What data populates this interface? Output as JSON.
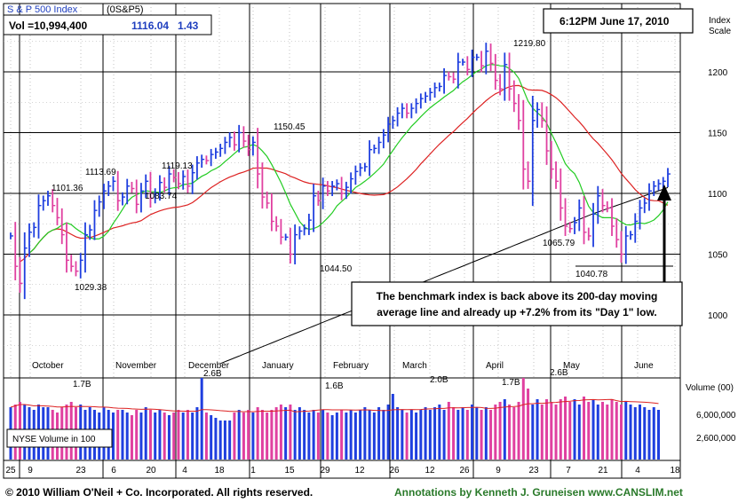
{
  "header": {
    "index_name": "S & P 500 Index",
    "symbol": "(0S&P5)",
    "volume_text": "Vol =10,994,400",
    "last_price": "1116.04",
    "change": "1.43",
    "timestamp": "6:12PM  June 17, 2010",
    "index_scale_label_1": "Index",
    "index_scale_label_2": "Scale"
  },
  "annotation": {
    "line1": "The benchmark index is back above its 200-day moving",
    "line2": "average line and already up +7.2% from its \"Day 1\" low."
  },
  "volume_panel": {
    "label": "NYSE Volume in 100",
    "axis_title": "Volume (00)",
    "axis_ticks": [
      "6,000,000",
      "2,600,000"
    ],
    "peak_labels": [
      "1.7B",
      "2.6B",
      "1.6B",
      "2.0B",
      "1.7B",
      "2.6B"
    ]
  },
  "footer": {
    "copyright": "© 2010 William O'Neil + Co. Incorporated. All rights reserved.",
    "credit": "Annotations by Kenneth J. Gruneisen www.CANSLIM.net"
  },
  "colors": {
    "up_bar": "#1f3fdf",
    "down_bar": "#e040a0",
    "ma50": "#22cc22",
    "ma200": "#000000",
    "ma_red": "#dd2222",
    "grid": "#888888"
  },
  "chart_data": {
    "type": "bar",
    "title": "S & P 500 Index",
    "ylabel": "Index Scale",
    "ylim": [
      965,
      1230
    ],
    "y_ticks": [
      1000,
      1050,
      1100,
      1150,
      1200
    ],
    "x_tick_labels": [
      "25",
      "9",
      "23",
      "6",
      "20",
      "4",
      "18",
      "1",
      "15",
      "29",
      "12",
      "26",
      "12",
      "26",
      "9",
      "23",
      "7",
      "21",
      "4",
      "18"
    ],
    "month_labels": [
      "October",
      "November",
      "December",
      "January",
      "February",
      "March",
      "April",
      "May",
      "June"
    ],
    "annotated_levels": [
      {
        "label": "1101.36",
        "value": 1101.36
      },
      {
        "label": "1029.38",
        "value": 1029.38
      },
      {
        "label": "1113.69",
        "value": 1113.69
      },
      {
        "label": "1083.74",
        "value": 1083.74
      },
      {
        "label": "1119.13",
        "value": 1119.13
      },
      {
        "label": "1150.45",
        "value": 1150.45
      },
      {
        "label": "1044.50",
        "value": 1044.5
      },
      {
        "label": "1219.80",
        "value": 1219.8
      },
      {
        "label": "1065.79",
        "value": 1065.79
      },
      {
        "label": "1040.78",
        "value": 1040.78
      }
    ],
    "series": [
      {
        "name": "price_close",
        "values": [
          1065,
          1040,
          1026,
          1055,
          1068,
          1072,
          1090,
          1094,
          1098,
          1090,
          1080,
          1066,
          1045,
          1040,
          1036,
          1045,
          1066,
          1070,
          1086,
          1093,
          1102,
          1106,
          1110,
          1094,
          1097,
          1106,
          1104,
          1091,
          1102,
          1110,
          1096,
          1100,
          1109,
          1105,
          1116,
          1113,
          1108,
          1114,
          1106,
          1117,
          1125,
          1128,
          1127,
          1132,
          1134,
          1137,
          1142,
          1146,
          1140,
          1150,
          1143,
          1136,
          1142,
          1116,
          1097,
          1092,
          1077,
          1073,
          1064,
          1064,
          1050,
          1066,
          1069,
          1071,
          1078,
          1098,
          1094,
          1106,
          1102,
          1106,
          1108,
          1100,
          1105,
          1112,
          1118,
          1121,
          1122,
          1136,
          1137,
          1142,
          1148,
          1157,
          1160,
          1166,
          1170,
          1166,
          1170,
          1174,
          1178,
          1180,
          1183,
          1187,
          1188,
          1197,
          1196,
          1194,
          1208,
          1208,
          1202,
          1212,
          1212,
          1205,
          1217,
          1207,
          1193,
          1186,
          1206,
          1186,
          1174,
          1160,
          1120,
          1110,
          1160,
          1169,
          1160,
          1135,
          1120,
          1110,
          1088,
          1073,
          1071,
          1076,
          1088,
          1068,
          1065,
          1083,
          1098,
          1090,
          1088,
          1073,
          1062,
          1050,
          1065,
          1066,
          1077,
          1088,
          1092,
          1102,
          1106,
          1108,
          1110,
          1116
        ]
      },
      {
        "name": "volume",
        "values": [
          1.5,
          1.6,
          1.7,
          1.6,
          1.5,
          1.4,
          1.6,
          1.5,
          1.5,
          1.4,
          1.3,
          1.5,
          1.6,
          1.7,
          1.5,
          1.6,
          1.4,
          1.5,
          1.4,
          1.3,
          1.5,
          1.4,
          1.3,
          1.4,
          1.4,
          1.3,
          1.2,
          1.4,
          1.3,
          1.5,
          1.4,
          1.3,
          1.4,
          1.3,
          1.2,
          1.3,
          1.4,
          1.3,
          1.4,
          1.3,
          1.5,
          2.6,
          1.3,
          1.2,
          1.1,
          1.0,
          1.0,
          1.0,
          1.3,
          1.4,
          1.3,
          1.4,
          1.3,
          1.5,
          1.4,
          1.3,
          1.4,
          1.5,
          1.6,
          1.5,
          1.6,
          1.4,
          1.5,
          1.4,
          1.3,
          1.4,
          1.3,
          1.4,
          1.3,
          1.2,
          1.3,
          1.4,
          1.3,
          1.4,
          1.3,
          1.4,
          1.5,
          1.4,
          1.3,
          1.5,
          1.4,
          1.6,
          2.0,
          1.5,
          1.4,
          1.3,
          1.4,
          1.3,
          1.4,
          1.5,
          1.4,
          1.5,
          1.6,
          1.4,
          1.7,
          1.5,
          1.4,
          1.5,
          1.4,
          1.6,
          1.5,
          1.4,
          1.5,
          1.4,
          1.6,
          1.7,
          1.8,
          1.6,
          1.5,
          1.7,
          2.6,
          2.2,
          1.6,
          1.8,
          1.6,
          1.8,
          1.7,
          1.6,
          1.8,
          1.9,
          1.7,
          1.8,
          1.6,
          1.9,
          1.7,
          1.8,
          1.6,
          1.7,
          1.6,
          1.8,
          1.7,
          1.6,
          1.7,
          1.6,
          1.5,
          1.6,
          1.5,
          1.4,
          1.5,
          1.4
        ]
      }
    ]
  }
}
